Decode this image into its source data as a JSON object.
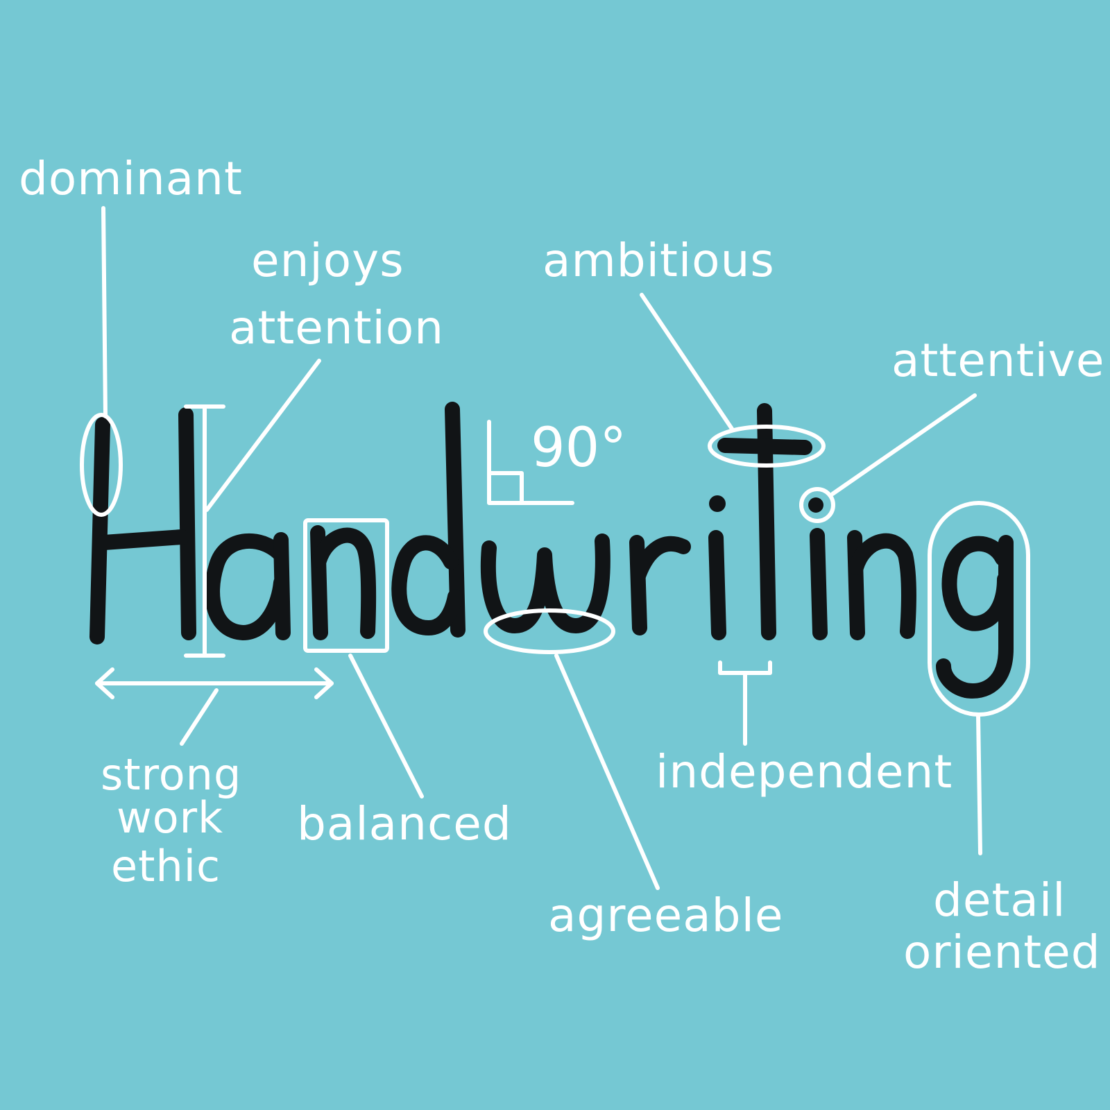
{
  "background_color": "#75c8d3",
  "word": {
    "text": "Handwriting",
    "ink_color": "#111416"
  },
  "annotations": {
    "dominant": "dominant",
    "enjoys_attention": [
      "enjoys",
      "attention"
    ],
    "ambitious": "ambitious",
    "attentive": "attentive",
    "angle": "90°",
    "strong_work_ethic": [
      "strong",
      "work",
      "ethic"
    ],
    "balanced": "balanced",
    "agreeable": "agreeable",
    "independent": "independent",
    "detail_oriented": [
      "detail",
      "oriented"
    ]
  },
  "marker_color": "#ffffff"
}
